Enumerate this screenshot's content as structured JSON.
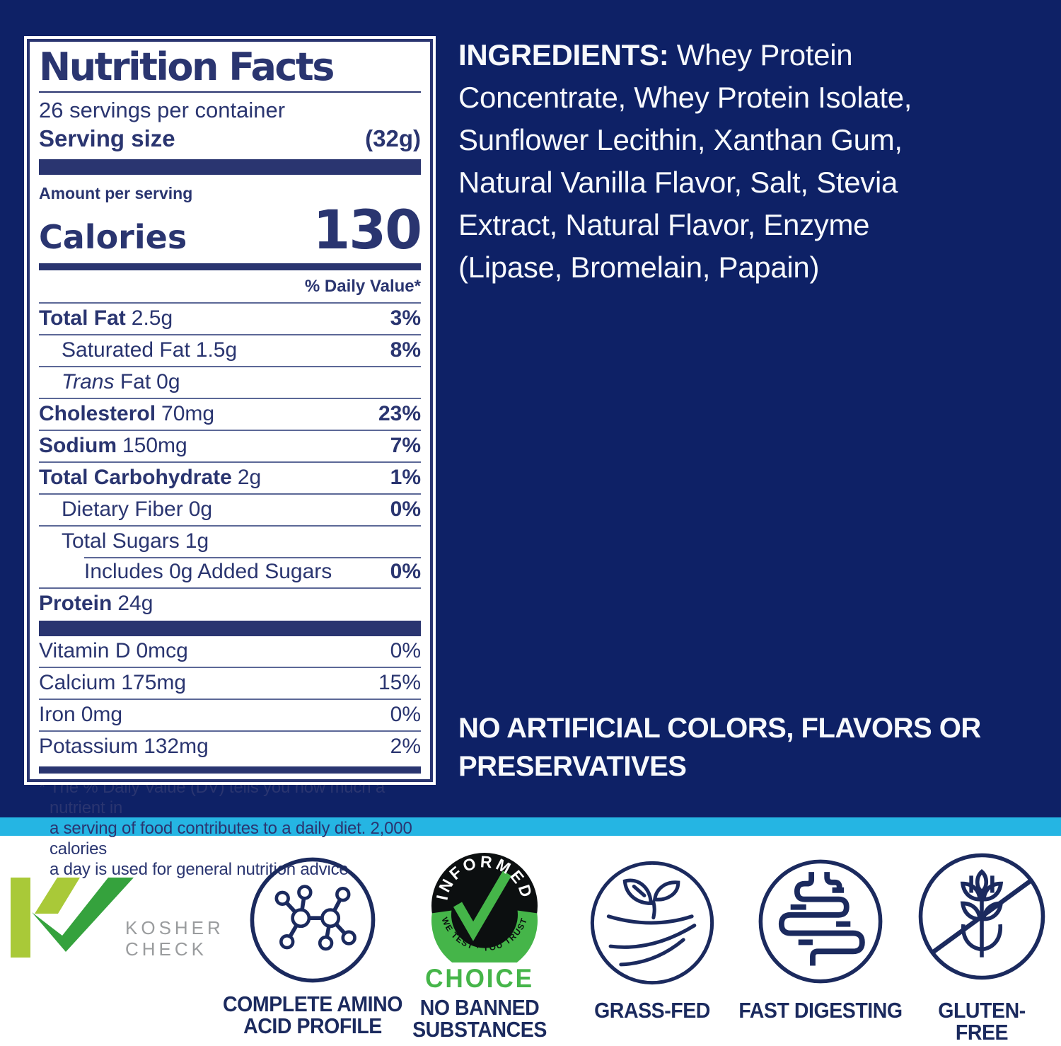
{
  "page": {
    "bg_navy": "#0e2166",
    "bg_cyan": "#25b5e3",
    "bg_white": "#ffffff",
    "label_navy": "#2a3570",
    "icon_navy": "#1b2a5e"
  },
  "nutrition_label": {
    "title": "Nutrition Facts",
    "servings_per_container": "26 servings per container",
    "serving_size_label": "Serving size",
    "serving_size_value": "(32g)",
    "amount_per_serving": "Amount per serving",
    "calories_label": "Calories",
    "calories_value": "130",
    "daily_value_header": "% Daily Value*",
    "nutrient_rows": [
      {
        "name": "Total Fat",
        "amount": "2.5g",
        "dv": "3%",
        "name_bold": true,
        "indent": 0
      },
      {
        "name": "Saturated Fat",
        "amount": "1.5g",
        "dv": "8%",
        "name_bold": false,
        "indent": 1
      },
      {
        "italic": "Trans",
        "name": "Fat",
        "amount": "0g",
        "dv": "",
        "name_bold": false,
        "indent": 1
      },
      {
        "name": "Cholesterol",
        "amount": "70mg",
        "dv": "23%",
        "name_bold": true,
        "indent": 0
      },
      {
        "name": "Sodium",
        "amount": "150mg",
        "dv": "7%",
        "name_bold": true,
        "indent": 0
      },
      {
        "name": "Total Carbohydrate",
        "amount": "2g",
        "dv": "1%",
        "name_bold": true,
        "indent": 0
      },
      {
        "name": "Dietary Fiber",
        "amount": "0g",
        "dv": "0%",
        "name_bold": false,
        "indent": 1
      },
      {
        "name": "Total Sugars",
        "amount": "1g",
        "dv": "",
        "name_bold": false,
        "indent": 1
      },
      {
        "name": "Includes 0g Added Sugars",
        "amount": "",
        "dv": "0%",
        "name_bold": false,
        "indent": 2,
        "partial_rule": true
      },
      {
        "name": "Protein",
        "amount": "24g",
        "dv": "",
        "name_bold": true,
        "indent": 0
      }
    ],
    "vitamin_rows": [
      {
        "name": "Vitamin D",
        "amount": "0mcg",
        "dv": "0%"
      },
      {
        "name": "Calcium",
        "amount": "175mg",
        "dv": "15%"
      },
      {
        "name": "Iron",
        "amount": "0mg",
        "dv": "0%"
      },
      {
        "name": "Potassium",
        "amount": "132mg",
        "dv": "2%"
      }
    ],
    "footnote": "* The % Daily Value (DV) tells you how much a nutrient in\na serving of food contributes to a daily diet. 2,000 calories\na day is used for general nutrition advice."
  },
  "ingredients": {
    "heading": "INGREDIENTS:",
    "text": " Whey Protein\nConcentrate, Whey Protein Isolate,\nSunflower Lecithin, Xanthan Gum,\nNatural Vanilla Flavor, Salt, Stevia\nExtract, Natural Flavor, Enzyme\n(Lipase, Bromelain, Papain)"
  },
  "claims": {
    "no_artificial": "NO ARTIFICIAL COLORS, FLAVORS OR\nPRESERVATIVES"
  },
  "badges": {
    "kosher": {
      "line1": "KOSHER",
      "line2": "CHECK",
      "light_green": "#a9c938",
      "green": "#35a23d",
      "gray": "#9a9c9e"
    },
    "amino": {
      "caption": "COMPLETE AMINO\nACID PROFILE"
    },
    "informed": {
      "arc_top": "INFORMED",
      "arc_bottom": "WE TEST · YOU TRUST",
      "choice": "CHOICE",
      "caption": "NO BANNED\nSUBSTANCES",
      "green": "#45b549",
      "black": "#0c0f10"
    },
    "grass": {
      "caption": "GRASS-FED"
    },
    "fast": {
      "caption": "FAST DIGESTING"
    },
    "gluten": {
      "caption": "GLUTEN-FREE"
    }
  }
}
